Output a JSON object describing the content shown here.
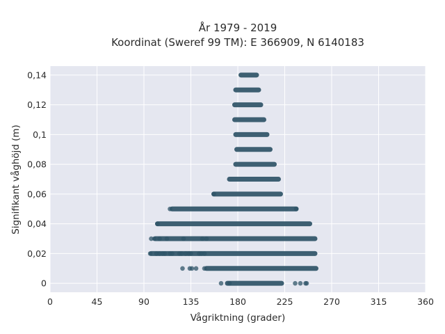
{
  "chart_data": {
    "type": "scatter",
    "title": "År 1979 - 2019",
    "subtitle": "Koordinat (Sweref 99 TM): E 366909, N 6140183",
    "xlabel": "Vågriktning (grader)",
    "ylabel": "Signifikant våghöjd (m)",
    "xlim": [
      0,
      360
    ],
    "ylim": [
      -0.006,
      0.146
    ],
    "x_ticks": [
      0,
      45,
      90,
      135,
      180,
      225,
      270,
      315,
      360
    ],
    "x_tick_labels": [
      "0",
      "45",
      "90",
      "135",
      "180",
      "225",
      "270",
      "315",
      "360"
    ],
    "y_ticks": [
      0,
      0.02,
      0.04,
      0.06,
      0.08,
      0.1,
      0.12,
      0.14
    ],
    "y_tick_labels": [
      "0",
      "0,02",
      "0,04",
      "0,06",
      "0,08",
      "0,1",
      "0,12",
      "0,14"
    ],
    "grid": true,
    "marker_color": "#2f5468",
    "plot_background": "#e5e7f0",
    "bands": [
      {
        "y": 0.14,
        "segments": [
          [
            183,
            198
          ]
        ]
      },
      {
        "y": 0.13,
        "segments": [
          [
            178,
            200
          ]
        ]
      },
      {
        "y": 0.12,
        "segments": [
          [
            177,
            202
          ]
        ]
      },
      {
        "y": 0.11,
        "segments": [
          [
            177,
            205
          ]
        ]
      },
      {
        "y": 0.1,
        "segments": [
          [
            178,
            208
          ]
        ]
      },
      {
        "y": 0.09,
        "segments": [
          [
            179,
            211
          ]
        ]
      },
      {
        "y": 0.08,
        "segments": [
          [
            178,
            215
          ]
        ]
      },
      {
        "y": 0.07,
        "segments": [
          [
            172,
            219
          ]
        ]
      },
      {
        "y": 0.06,
        "segments": [
          [
            157,
            221
          ]
        ]
      },
      {
        "y": 0.05,
        "segments": [
          [
            117,
            236
          ]
        ]
      },
      {
        "y": 0.04,
        "segments": [
          [
            103,
            249
          ]
        ]
      },
      {
        "y": 0.03,
        "segments": [
          [
            101,
            254
          ]
        ]
      },
      {
        "y": 0.02,
        "segments": [
          [
            97,
            254
          ]
        ]
      },
      {
        "y": 0.01,
        "segments": [
          [
            150,
            255
          ]
        ]
      },
      {
        "y": 0.0,
        "segments": [
          [
            170,
            222
          ]
        ]
      }
    ],
    "isolated_points": [
      {
        "x": 157,
        "y": 0.06
      },
      {
        "x": 115,
        "y": 0.05
      },
      {
        "x": 236,
        "y": 0.05
      },
      {
        "x": 103,
        "y": 0.04
      },
      {
        "x": 97,
        "y": 0.03
      },
      {
        "x": 100,
        "y": 0.03
      },
      {
        "x": 105,
        "y": 0.03
      },
      {
        "x": 112,
        "y": 0.03
      },
      {
        "x": 128,
        "y": 0.03
      },
      {
        "x": 146,
        "y": 0.03
      },
      {
        "x": 150,
        "y": 0.03
      },
      {
        "x": 96,
        "y": 0.02
      },
      {
        "x": 102,
        "y": 0.02
      },
      {
        "x": 105,
        "y": 0.02
      },
      {
        "x": 108,
        "y": 0.02
      },
      {
        "x": 110,
        "y": 0.02
      },
      {
        "x": 115,
        "y": 0.02
      },
      {
        "x": 117,
        "y": 0.02
      },
      {
        "x": 124,
        "y": 0.02
      },
      {
        "x": 126,
        "y": 0.02
      },
      {
        "x": 130,
        "y": 0.02
      },
      {
        "x": 133,
        "y": 0.02
      },
      {
        "x": 135,
        "y": 0.02
      },
      {
        "x": 143,
        "y": 0.02
      },
      {
        "x": 145,
        "y": 0.02
      },
      {
        "x": 148,
        "y": 0.02
      },
      {
        "x": 127,
        "y": 0.01
      },
      {
        "x": 134,
        "y": 0.01
      },
      {
        "x": 136,
        "y": 0.01
      },
      {
        "x": 140,
        "y": 0.01
      },
      {
        "x": 148,
        "y": 0.01
      },
      {
        "x": 164,
        "y": 0.0
      },
      {
        "x": 172,
        "y": 0.0
      },
      {
        "x": 235,
        "y": 0.0
      },
      {
        "x": 240,
        "y": 0.0
      },
      {
        "x": 245,
        "y": 0.0
      },
      {
        "x": 246,
        "y": 0.0
      }
    ]
  }
}
